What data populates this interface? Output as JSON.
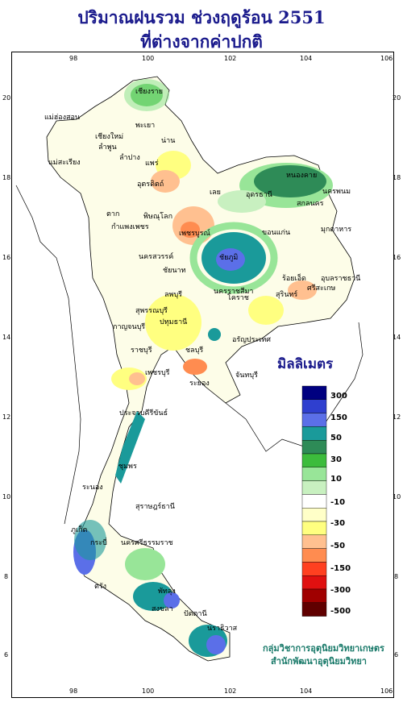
{
  "title": {
    "line1": "ปริมาณฝนรวม ช่วงฤดูร้อน 2551",
    "line2": "ที่ต่างจากค่าปกติ"
  },
  "axis": {
    "x_ticks": [
      "98",
      "100",
      "102",
      "104",
      "106"
    ],
    "y_ticks": [
      "20",
      "18",
      "16",
      "14",
      "12",
      "10",
      "8",
      "6"
    ]
  },
  "legend": {
    "unit": "มิลลิเมตร",
    "labels": [
      "300",
      "150",
      "50",
      "30",
      "10",
      "-10",
      "-30",
      "-50",
      "-150",
      "-300",
      "-500"
    ],
    "colors": [
      "#000080",
      "#2f3fcf",
      "#5b6fe8",
      "#1a9a9a",
      "#2e8b57",
      "#3cbc3c",
      "#98e598",
      "#c8f0c0",
      "#ffffff",
      "#ffffc8",
      "#ffff80",
      "#ffc090",
      "#ff8c50",
      "#ff4020",
      "#e01010",
      "#a00000",
      "#600000"
    ]
  },
  "cities": [
    "เชียงราย",
    "แม่ฮ่องสอน",
    "พะเยา",
    "เชียงใหม่",
    "ลำพูน",
    "น่าน",
    "ลำปาง",
    "แพร่",
    "แม่สะเรียง",
    "อุตรดิตถ์",
    "ตาก",
    "พิษณุโลก",
    "เลย",
    "หนองคาย",
    "อุดรธานี",
    "สกลนคร",
    "นครพนม",
    "มุกดาหาร",
    "กำแพงเพชร",
    "เพชรบูรณ์",
    "ขอนแก่น",
    "นครสวรรค์",
    "ชัยภูมิ",
    "ร้อยเอ็ด",
    "อุบลราชธานี",
    "ชัยนาท",
    "ลพบุรี",
    "นครราชสีมา",
    "ศรีสะเกษ",
    "สุรินทร์",
    "สุพรรณบุรี",
    "กาญจนบุรี",
    "ปทุมธานี",
    "โคราช",
    "ราชบุรี",
    "อรัญประเทศ",
    "ชลบุรี",
    "เพชรบุรี",
    "ระยอง",
    "จันทบุรี",
    "ประจวบคีรีขันธ์",
    "ชุมพร",
    "ระนอง",
    "สุราษฎร์ธานี",
    "นครศรีธรรมราช",
    "ภูเก็ต",
    "กระบี่",
    "ตรัง",
    "พัทลุง",
    "สงขลา",
    "ปัตตานี",
    "นราธิวาส"
  ],
  "credit": {
    "line1": "กลุ่มวิชาการอุตุนิยมวิทยาเกษตร",
    "line2": "สำนักพัฒนาอุตุนิยมวิทยา"
  }
}
